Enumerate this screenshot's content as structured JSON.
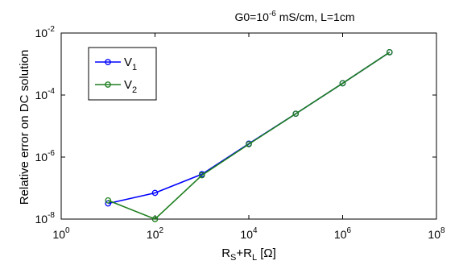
{
  "chart_data": {
    "type": "line",
    "title": {
      "pre": "G0=10",
      "sup": "-6",
      "post": " mS/cm, L=1cm"
    },
    "xlabel": {
      "p1": "R",
      "s1": "S",
      "p2": "+R",
      "s2": "L",
      "p3": " [Ω]"
    },
    "ylabel": "Relative error on DC solution",
    "xscale": "log",
    "yscale": "log",
    "xlim": [
      1,
      100000000
    ],
    "ylim": [
      1e-08,
      0.01
    ],
    "xticks": [
      {
        "value": 1,
        "base": "10",
        "exp": "0"
      },
      {
        "value": 100,
        "base": "10",
        "exp": "2"
      },
      {
        "value": 10000,
        "base": "10",
        "exp": "4"
      },
      {
        "value": 1000000,
        "base": "10",
        "exp": "6"
      },
      {
        "value": 100000000,
        "base": "10",
        "exp": "8"
      }
    ],
    "yticks": [
      {
        "value": 1e-08,
        "base": "10",
        "exp": "-8"
      },
      {
        "value": 1e-06,
        "base": "10",
        "exp": "-6"
      },
      {
        "value": 0.0001,
        "base": "10",
        "exp": "-4"
      },
      {
        "value": 0.01,
        "base": "10",
        "exp": "-2"
      }
    ],
    "grid": false,
    "legend_position": "top-left",
    "series": [
      {
        "name": "V",
        "name_sub": "1",
        "color": "#0000ff",
        "x": [
          10,
          100,
          1000,
          10000,
          100000,
          1000000,
          10000000
        ],
        "y": [
          3.2e-08,
          7e-08,
          2.8e-07,
          2.7e-06,
          2.5e-05,
          0.00024,
          0.0024
        ]
      },
      {
        "name": "V",
        "name_sub": "2",
        "color": "#1f7f1f",
        "x": [
          10,
          100,
          1000,
          10000,
          100000,
          1000000,
          10000000
        ],
        "y": [
          4e-08,
          1e-08,
          2.6e-07,
          2.6e-06,
          2.5e-05,
          0.00024,
          0.0024
        ]
      }
    ]
  }
}
